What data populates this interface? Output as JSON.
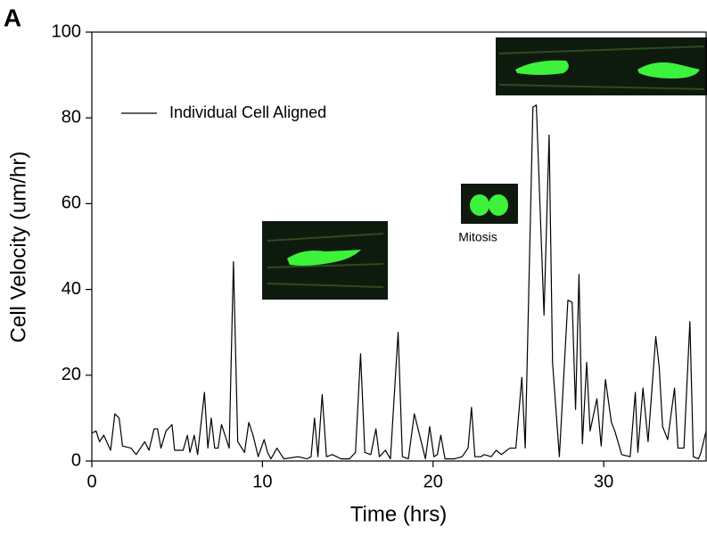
{
  "chart_data": {
    "type": "line",
    "panel_label": "A",
    "xlabel": "Time (hrs)",
    "ylabel": "Cell Velocity (um/hr)",
    "annotations": [
      "Mitosis"
    ],
    "legend": "upper left",
    "xlim": [
      0,
      36
    ],
    "xticks": [
      0,
      10,
      20,
      30
    ],
    "ylim": [
      0,
      100
    ],
    "yticks": [
      0,
      20,
      40,
      60,
      80,
      100
    ],
    "x": [
      0,
      0.25,
      0.45,
      0.7,
      1.1,
      1.35,
      1.6,
      1.8,
      2.3,
      2.6,
      3.1,
      3.35,
      3.65,
      3.85,
      4.05,
      4.35,
      4.7,
      4.85,
      5.35,
      5.6,
      5.75,
      6.0,
      6.2,
      6.6,
      6.8,
      7.0,
      7.2,
      7.4,
      7.6,
      8.05,
      8.3,
      8.55,
      8.95,
      9.2,
      9.45,
      9.75,
      10.1,
      10.3,
      10.5,
      10.85,
      11.25,
      12.1,
      12.6,
      12.85,
      13.05,
      13.25,
      13.5,
      13.75,
      14.1,
      14.6,
      15.1,
      15.45,
      15.75,
      16.0,
      16.35,
      16.65,
      16.85,
      17.2,
      17.5,
      17.95,
      18.2,
      18.55,
      18.9,
      19.15,
      19.55,
      19.8,
      20.05,
      20.25,
      20.45,
      20.7,
      21.25,
      21.7,
      22.05,
      22.25,
      22.45,
      22.8,
      23.0,
      23.4,
      23.7,
      24.0,
      24.5,
      24.85,
      25.2,
      25.4,
      25.85,
      26.05,
      26.5,
      26.8,
      27.0,
      27.4,
      27.9,
      28.15,
      28.35,
      28.55,
      28.75,
      29.0,
      29.2,
      29.6,
      29.85,
      30.1,
      30.45,
      30.65,
      31.05,
      31.55,
      31.85,
      32.0,
      32.3,
      32.6,
      33.05,
      33.25,
      33.45,
      33.75,
      34.15,
      34.35,
      34.7,
      35.05,
      35.25,
      35.55,
      35.7,
      36.0
    ],
    "series": [
      {
        "name": "Individual Cell Aligned",
        "color": "#000000",
        "values": [
          6.5,
          7,
          4.5,
          6,
          2.5,
          11,
          10,
          3.5,
          3,
          1.5,
          4.5,
          2.5,
          7.5,
          7.5,
          3,
          7,
          8.5,
          2.5,
          2.5,
          6,
          2,
          6,
          1.5,
          16,
          3,
          10,
          3,
          3,
          8.5,
          3,
          46.5,
          4.5,
          2,
          9,
          6,
          1,
          5,
          2,
          0.5,
          3,
          0.5,
          1,
          0.5,
          1,
          10,
          1,
          15.5,
          1,
          1.5,
          0.5,
          0.5,
          2,
          25,
          2,
          1.5,
          7.5,
          1,
          2.5,
          0.5,
          30,
          1,
          0.5,
          11,
          7,
          0.5,
          8,
          1,
          1.5,
          6,
          0.5,
          0.5,
          1,
          3,
          12.5,
          1,
          1,
          1.5,
          1,
          2.5,
          1.5,
          3,
          3,
          19.5,
          3,
          82.5,
          83,
          34,
          76,
          23,
          1,
          37.5,
          37,
          12,
          43.5,
          4,
          23,
          7,
          14.5,
          3.5,
          19,
          9,
          7,
          1.5,
          1,
          16,
          2,
          17,
          4.5,
          29,
          22,
          8,
          5,
          17,
          3,
          3,
          32.5,
          1,
          0.5,
          2,
          7
        ]
      }
    ]
  }
}
